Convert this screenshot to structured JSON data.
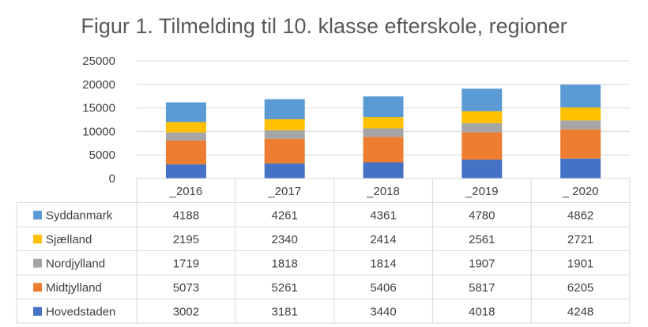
{
  "chart_data": {
    "type": "bar",
    "stacked": true,
    "title": "Figur 1. Tilmelding til 10. klasse efterskole, regioner",
    "categories": [
      "_2016",
      "_2017",
      "_2018",
      "_2019",
      "_ 2020"
    ],
    "ylim": [
      0,
      25000
    ],
    "yticks": [
      0,
      5000,
      10000,
      15000,
      20000,
      25000
    ],
    "yticklabels": [
      "0",
      "5000",
      "10000",
      "15000",
      "20000",
      "25000"
    ],
    "grid": true,
    "legend": "data-table",
    "series": [
      {
        "name": "Hovedstaden",
        "color": "#4472c4",
        "values": [
          3002,
          3181,
          3440,
          4018,
          4248
        ]
      },
      {
        "name": "Midtjylland",
        "color": "#ed7d31",
        "values": [
          5073,
          5261,
          5406,
          5817,
          6205
        ]
      },
      {
        "name": "Nordjylland",
        "color": "#a5a5a5",
        "values": [
          1719,
          1818,
          1814,
          1907,
          1901
        ]
      },
      {
        "name": "Sjælland",
        "color": "#ffc000",
        "values": [
          2195,
          2340,
          2414,
          2561,
          2721
        ]
      },
      {
        "name": "Syddanmark",
        "color": "#5b9bd5",
        "values": [
          4188,
          4261,
          4361,
          4780,
          4862
        ]
      }
    ],
    "table_order": [
      "Syddanmark",
      "Sjælland",
      "Nordjylland",
      "Midtjylland",
      "Hovedstaden"
    ]
  }
}
